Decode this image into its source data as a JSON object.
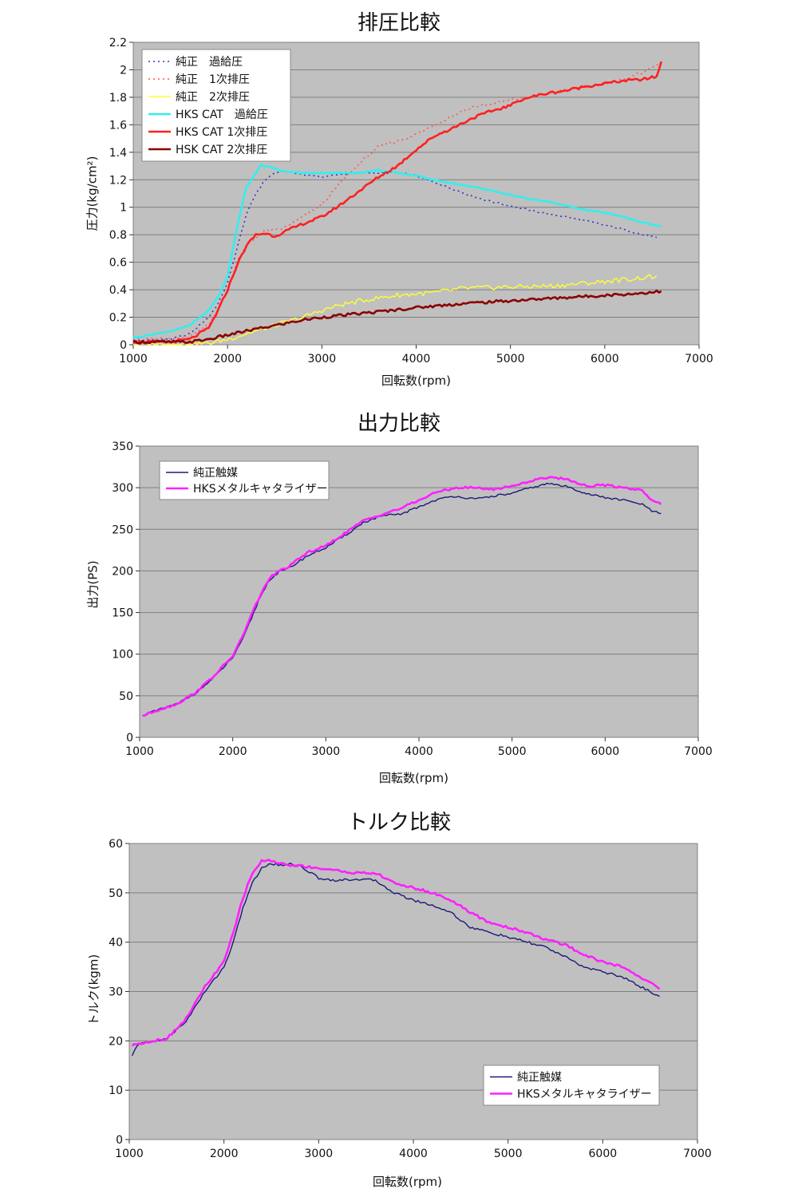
{
  "colors": {
    "plot_bg": "#c0c0c0",
    "grid": "#7f7f7f",
    "stock_boost": "#3333cc",
    "stock_ex1": "#ff5555",
    "stock_ex2": "#ffff33",
    "hks_boost": "#33eeee",
    "hks_ex1": "#ff2020",
    "hks_ex2": "#8b0000",
    "stock_cat": "#1a1a7a",
    "hks_cat": "#ff20ff"
  },
  "chart_data": [
    {
      "type": "line",
      "title": "排圧比較",
      "xlabel": "回転数(rpm)",
      "ylabel": "圧力(kg/cm²)",
      "xlim": [
        1000,
        7000
      ],
      "ylim": [
        0,
        2.2
      ],
      "xticks": [
        "1000",
        "2000",
        "3000",
        "4000",
        "5000",
        "6000",
        "7000"
      ],
      "yticks": [
        "0",
        "0.2",
        "0.4",
        "0.6",
        "0.8",
        "1",
        "1.2",
        "1.4",
        "1.6",
        "1.8",
        "2",
        "2.2"
      ],
      "grid": true,
      "legend_position": "top-left",
      "series": [
        {
          "name": "純正　過給圧",
          "style": "dotted",
          "color_key": "stock_boost",
          "x": [
            1000,
            1400,
            1600,
            1800,
            1900,
            2000,
            2100,
            2200,
            2300,
            2400,
            2500,
            2600,
            2800,
            3000,
            3200,
            3400,
            3600,
            3800,
            4000,
            4200,
            4400,
            4600,
            4800,
            5000,
            5200,
            5400,
            5600,
            5800,
            6000,
            6200,
            6400,
            6550
          ],
          "y": [
            0.03,
            0.04,
            0.08,
            0.2,
            0.3,
            0.45,
            0.7,
            0.95,
            1.1,
            1.2,
            1.25,
            1.26,
            1.24,
            1.22,
            1.24,
            1.25,
            1.25,
            1.25,
            1.23,
            1.18,
            1.13,
            1.08,
            1.04,
            1.01,
            0.98,
            0.95,
            0.93,
            0.9,
            0.87,
            0.84,
            0.8,
            0.78
          ]
        },
        {
          "name": "純正　1次排圧",
          "style": "dotted",
          "color_key": "stock_ex1",
          "x": [
            1000,
            1400,
            1600,
            1800,
            1900,
            2000,
            2100,
            2200,
            2300,
            2400,
            2500,
            2600,
            2800,
            3000,
            3200,
            3400,
            3600,
            3800,
            4000,
            4200,
            4400,
            4600,
            4800,
            5000,
            5200,
            5400,
            5600,
            5800,
            6000,
            6200,
            6400,
            6600
          ],
          "y": [
            0.05,
            0.04,
            0.06,
            0.15,
            0.25,
            0.4,
            0.6,
            0.72,
            0.78,
            0.83,
            0.83,
            0.85,
            0.93,
            1.02,
            1.18,
            1.32,
            1.44,
            1.48,
            1.53,
            1.6,
            1.67,
            1.73,
            1.75,
            1.78,
            1.8,
            1.83,
            1.85,
            1.88,
            1.9,
            1.93,
            1.98,
            2.05
          ]
        },
        {
          "name": "純正　2次排圧",
          "style": "solid-thin",
          "color_key": "stock_ex2",
          "x": [
            1000,
            1500,
            1800,
            2000,
            2200,
            2500,
            2800,
            3000,
            3200,
            3500,
            3800,
            4000,
            4200,
            4500,
            5000,
            5500,
            6000,
            6300,
            6550
          ],
          "y": [
            0.0,
            0.0,
            0.01,
            0.04,
            0.08,
            0.14,
            0.2,
            0.25,
            0.29,
            0.33,
            0.36,
            0.37,
            0.38,
            0.41,
            0.42,
            0.43,
            0.46,
            0.48,
            0.5
          ]
        },
        {
          "name": "HKS CAT　過給圧",
          "style": "solid",
          "color_key": "hks_boost",
          "x": [
            1000,
            1400,
            1600,
            1800,
            1900,
            2000,
            2100,
            2200,
            2300,
            2350,
            2400,
            2600,
            2800,
            3000,
            3200,
            3400,
            3600,
            3800,
            4000,
            4200,
            4400,
            4600,
            4800,
            5000,
            5200,
            5400,
            5600,
            5800,
            6000,
            6200,
            6400,
            6600
          ],
          "y": [
            0.05,
            0.1,
            0.14,
            0.25,
            0.35,
            0.5,
            0.85,
            1.15,
            1.25,
            1.31,
            1.3,
            1.26,
            1.25,
            1.25,
            1.25,
            1.25,
            1.27,
            1.25,
            1.23,
            1.2,
            1.17,
            1.15,
            1.12,
            1.09,
            1.06,
            1.04,
            1.01,
            0.98,
            0.96,
            0.93,
            0.89,
            0.86
          ]
        },
        {
          "name": "HKS CAT 1次排圧",
          "style": "solid",
          "color_key": "hks_ex1",
          "x": [
            1000,
            1400,
            1600,
            1800,
            1900,
            2000,
            2100,
            2200,
            2300,
            2400,
            2500,
            2600,
            2800,
            3000,
            3200,
            3400,
            3600,
            3800,
            4000,
            4200,
            4400,
            4600,
            4800,
            5000,
            5100,
            5200,
            5400,
            5600,
            5800,
            6000,
            6200,
            6400,
            6550,
            6600
          ],
          "y": [
            0.02,
            0.02,
            0.04,
            0.12,
            0.25,
            0.4,
            0.58,
            0.72,
            0.8,
            0.81,
            0.79,
            0.82,
            0.88,
            0.93,
            1.02,
            1.12,
            1.22,
            1.3,
            1.42,
            1.52,
            1.58,
            1.65,
            1.7,
            1.74,
            1.78,
            1.8,
            1.83,
            1.85,
            1.88,
            1.9,
            1.92,
            1.93,
            1.95,
            2.06
          ]
        },
        {
          "name": "HSK CAT 2次排圧",
          "style": "solid",
          "color_key": "hks_ex2",
          "x": [
            1000,
            1400,
            1600,
            1800,
            2000,
            2200,
            2500,
            2800,
            3000,
            3300,
            3600,
            4000,
            4500,
            5000,
            5500,
            6000,
            6300,
            6600
          ],
          "y": [
            0.02,
            0.02,
            0.02,
            0.04,
            0.07,
            0.1,
            0.14,
            0.18,
            0.2,
            0.22,
            0.24,
            0.27,
            0.3,
            0.32,
            0.34,
            0.36,
            0.37,
            0.39
          ]
        }
      ]
    },
    {
      "type": "line",
      "title": "出力比較",
      "xlabel": "回転数(rpm)",
      "ylabel": "出力(PS)",
      "xlim": [
        1000,
        7000
      ],
      "ylim": [
        0,
        350
      ],
      "xticks": [
        "1000",
        "2000",
        "3000",
        "4000",
        "5000",
        "6000",
        "7000"
      ],
      "yticks": [
        "0",
        "50",
        "100",
        "150",
        "200",
        "250",
        "300",
        "350"
      ],
      "grid": true,
      "legend_position": "top-left",
      "series": [
        {
          "name": "純正触媒",
          "color_key": "stock_cat",
          "x": [
            1030,
            1200,
            1400,
            1600,
            1800,
            2000,
            2100,
            2200,
            2300,
            2400,
            2500,
            2600,
            2800,
            3000,
            3200,
            3400,
            3600,
            3800,
            4000,
            4200,
            4400,
            4600,
            4800,
            5000,
            5200,
            5400,
            5600,
            5800,
            6000,
            6200,
            6400,
            6500,
            6600
          ],
          "y": [
            26,
            33,
            40,
            53,
            72,
            96,
            116,
            143,
            170,
            190,
            199,
            203,
            218,
            228,
            242,
            258,
            266,
            268,
            277,
            286,
            290,
            286,
            290,
            293,
            300,
            305,
            301,
            293,
            288,
            285,
            280,
            272,
            269
          ]
        },
        {
          "name": "HKSメタルキャタライザー",
          "color_key": "hks_cat",
          "x": [
            1030,
            1200,
            1400,
            1600,
            1800,
            2000,
            2100,
            2200,
            2300,
            2400,
            2500,
            2600,
            2800,
            3000,
            3200,
            3400,
            3600,
            3800,
            4000,
            4200,
            4400,
            4600,
            4800,
            5000,
            5200,
            5400,
            5600,
            5800,
            6000,
            6200,
            6400,
            6500,
            6600
          ],
          "y": [
            26,
            33,
            40,
            54,
            74,
            98,
            120,
            147,
            172,
            192,
            200,
            205,
            222,
            230,
            245,
            260,
            268,
            275,
            285,
            295,
            300,
            300,
            298,
            302,
            308,
            313,
            310,
            302,
            303,
            300,
            297,
            285,
            280
          ]
        }
      ]
    },
    {
      "type": "line",
      "title": "トルク比較",
      "xlabel": "回転数(rpm)",
      "ylabel": "トルク(kgm)",
      "xlim": [
        1000,
        7000
      ],
      "ylim": [
        0,
        60
      ],
      "xticks": [
        "1000",
        "2000",
        "3000",
        "4000",
        "5000",
        "6000",
        "7000"
      ],
      "yticks": [
        "0",
        "10",
        "20",
        "30",
        "40",
        "50",
        "60"
      ],
      "grid": true,
      "legend_position": "bottom-right",
      "series": [
        {
          "name": "純正触媒",
          "color_key": "stock_cat",
          "x": [
            1030,
            1100,
            1200,
            1400,
            1600,
            1800,
            2000,
            2100,
            2200,
            2300,
            2400,
            2500,
            2600,
            2700,
            2800,
            3000,
            3200,
            3400,
            3600,
            3800,
            4000,
            4200,
            4400,
            4600,
            4800,
            5000,
            5200,
            5400,
            5600,
            5800,
            6000,
            6200,
            6400,
            6600
          ],
          "y": [
            17,
            19.5,
            19.7,
            20.5,
            24,
            30,
            35,
            40,
            47,
            52,
            55,
            56,
            55.5,
            56,
            55.5,
            53,
            52.5,
            52.8,
            52.5,
            50,
            48.5,
            47.5,
            46,
            43,
            42,
            41,
            40,
            39,
            37,
            35,
            34,
            33,
            31,
            29
          ]
        },
        {
          "name": "HKSメタルキャタライザー",
          "color_key": "hks_cat",
          "x": [
            1030,
            1100,
            1200,
            1400,
            1600,
            1800,
            2000,
            2100,
            2200,
            2300,
            2400,
            2500,
            2600,
            2700,
            2800,
            3000,
            3200,
            3400,
            3600,
            3800,
            4000,
            4200,
            4400,
            4600,
            4800,
            5000,
            5200,
            5400,
            5600,
            5800,
            6000,
            6200,
            6400,
            6600
          ],
          "y": [
            19,
            19.5,
            19.8,
            20.5,
            24.5,
            31,
            36,
            42,
            49,
            54,
            56.5,
            56.5,
            56,
            55.5,
            55.5,
            55,
            54.5,
            54,
            54,
            52,
            51,
            50,
            48.5,
            46,
            44,
            43,
            42,
            40.5,
            39.5,
            37.5,
            36,
            35,
            33,
            30.5
          ]
        }
      ]
    }
  ]
}
